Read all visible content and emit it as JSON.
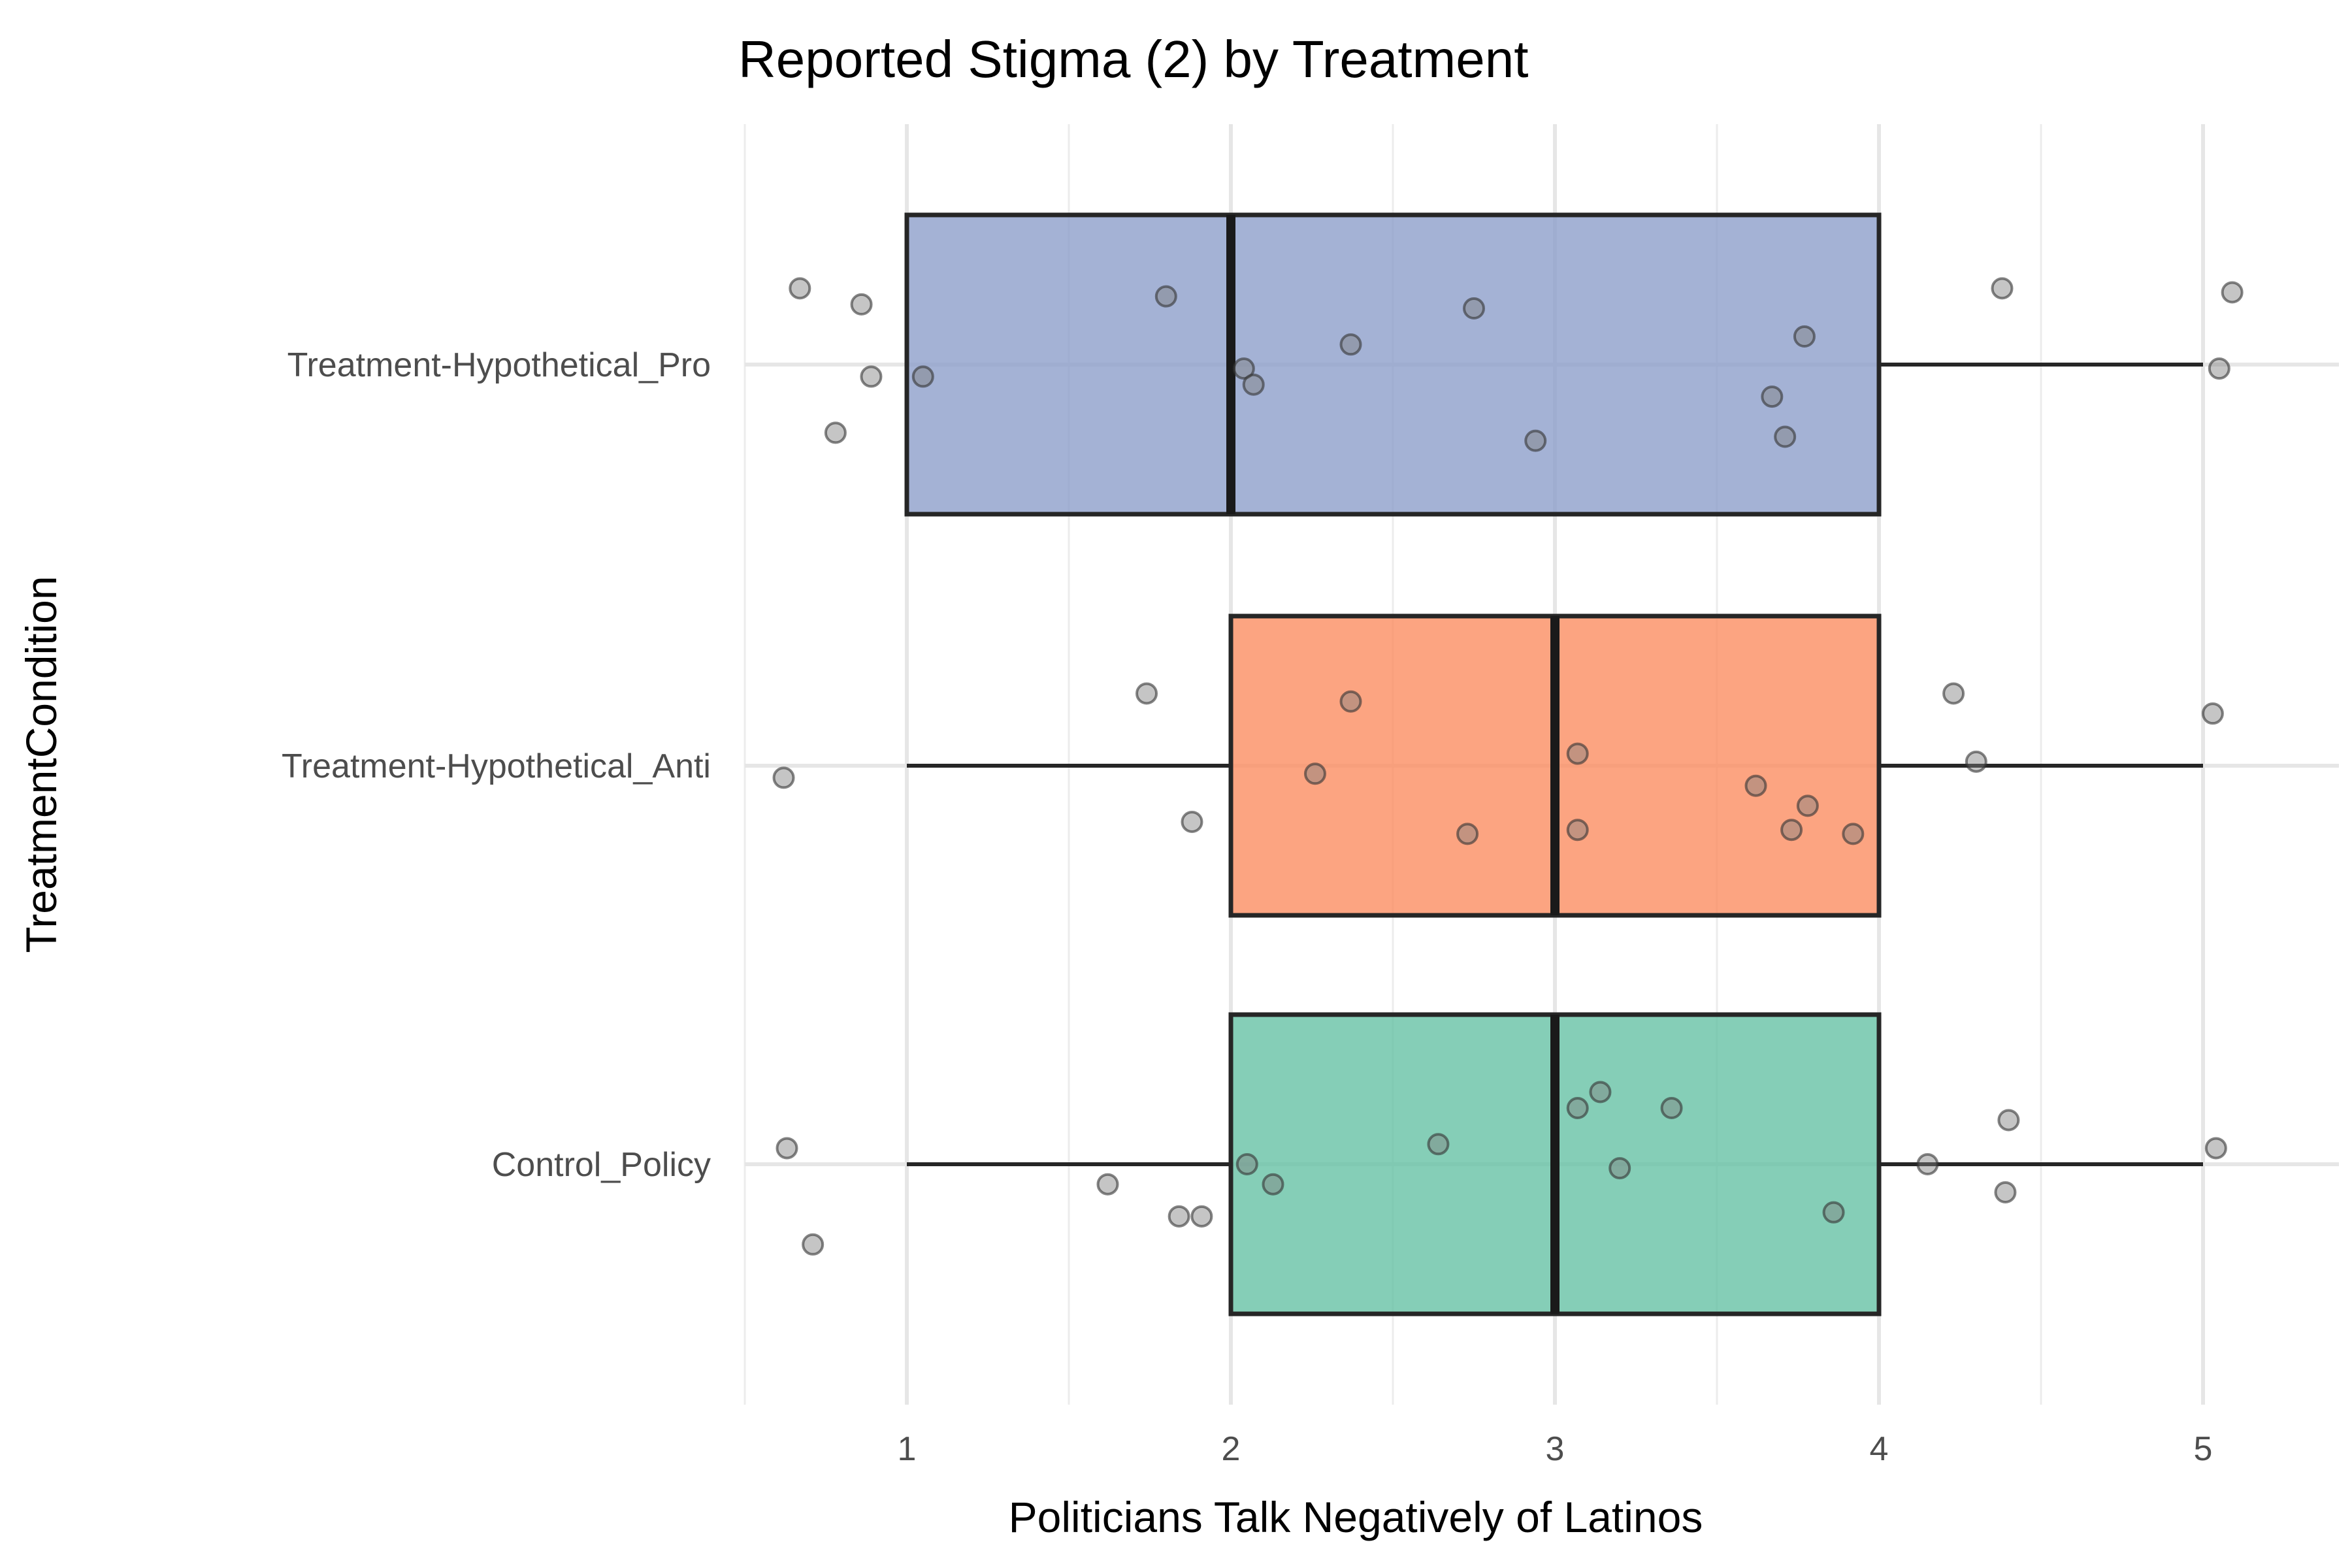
{
  "chart_data": {
    "type": "boxplot",
    "orientation": "horizontal",
    "title": "Reported Stigma (2) by Treatment",
    "xlabel": "Politicians Talk Negatively of Latinos",
    "ylabel": "TreatmentCondition",
    "xlim": [
      0.5,
      5.3
    ],
    "x_ticks": [
      1,
      2,
      3,
      4,
      5
    ],
    "categories": [
      "Treatment-Hypothetical_Pro",
      "Treatment-Hypothetical_Anti",
      "Control_Policy"
    ],
    "grid": true,
    "legend": "none",
    "point_color": "#7f7f7f",
    "series": [
      {
        "category": "Treatment-Hypothetical_Pro",
        "color": "#8d9fca",
        "min": 1,
        "q1": 1,
        "median": 2,
        "q3": 4,
        "max": 5,
        "points": [
          [
            0.67,
            0.19
          ],
          [
            0.86,
            0.15
          ],
          [
            0.89,
            -0.03
          ],
          [
            0.78,
            -0.17
          ],
          [
            1.05,
            -0.03
          ],
          [
            1.8,
            0.17
          ],
          [
            2.37,
            0.05
          ],
          [
            2.04,
            -0.01
          ],
          [
            2.07,
            -0.05
          ],
          [
            2.75,
            0.14
          ],
          [
            2.94,
            -0.19
          ],
          [
            3.77,
            0.07
          ],
          [
            3.67,
            -0.08
          ],
          [
            3.71,
            -0.18
          ],
          [
            4.38,
            0.19
          ],
          [
            5.09,
            0.18
          ],
          [
            5.05,
            -0.01
          ]
        ]
      },
      {
        "category": "Treatment-Hypothetical_Anti",
        "color": "#fb8d62",
        "min": 1,
        "q1": 2,
        "median": 3,
        "q3": 4,
        "max": 5,
        "points": [
          [
            0.62,
            -0.03
          ],
          [
            1.74,
            0.18
          ],
          [
            1.88,
            -0.14
          ],
          [
            2.37,
            0.16
          ],
          [
            2.26,
            -0.02
          ],
          [
            2.73,
            -0.17
          ],
          [
            3.07,
            0.03
          ],
          [
            3.07,
            -0.16
          ],
          [
            3.62,
            -0.05
          ],
          [
            3.78,
            -0.1
          ],
          [
            3.73,
            -0.16
          ],
          [
            3.92,
            -0.17
          ],
          [
            4.23,
            0.18
          ],
          [
            4.3,
            0.01
          ],
          [
            5.03,
            0.13
          ]
        ]
      },
      {
        "category": "Control_Policy",
        "color": "#66c2a5",
        "min": 1,
        "q1": 2,
        "median": 3,
        "q3": 4,
        "max": 5,
        "points": [
          [
            0.63,
            0.04
          ],
          [
            0.71,
            -0.2
          ],
          [
            1.62,
            -0.05
          ],
          [
            1.84,
            -0.13
          ],
          [
            1.91,
            -0.13
          ],
          [
            2.05,
            0.0
          ],
          [
            2.13,
            -0.05
          ],
          [
            2.64,
            0.05
          ],
          [
            3.07,
            0.14
          ],
          [
            3.14,
            0.18
          ],
          [
            3.36,
            0.14
          ],
          [
            3.2,
            -0.01
          ],
          [
            3.86,
            -0.12
          ],
          [
            4.15,
            0.0
          ],
          [
            4.4,
            0.11
          ],
          [
            4.39,
            -0.07
          ],
          [
            5.04,
            0.04
          ]
        ]
      }
    ]
  }
}
